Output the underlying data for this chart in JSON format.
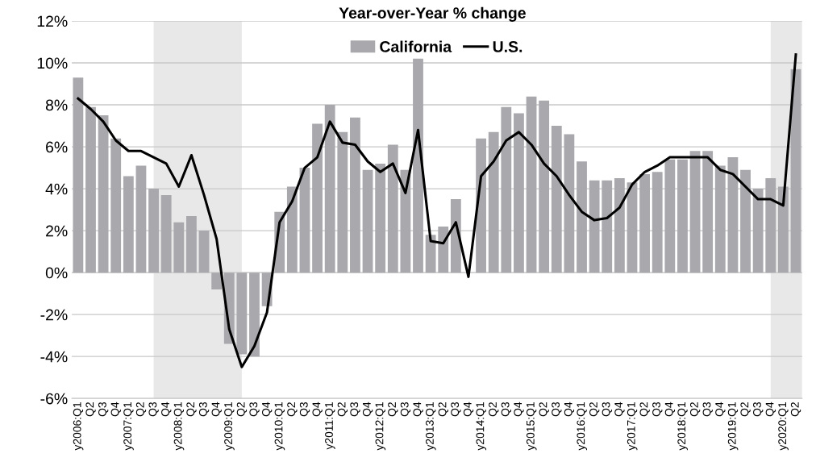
{
  "chart_data": {
    "type": "bar",
    "title": "Year-over-Year % change",
    "categories": [
      "y2006:Q1",
      "Q2",
      "Q3",
      "Q4",
      "y2007:Q1",
      "Q2",
      "Q3",
      "Q4",
      "y2008:Q1",
      "Q2",
      "Q3",
      "Q4",
      "y2009:Q1",
      "Q2",
      "Q3",
      "Q4",
      "y2010:Q1",
      "Q2",
      "Q3",
      "Q4",
      "y2011:Q1",
      "Q2",
      "Q3",
      "Q4",
      "y2012:Q1",
      "Q2",
      "Q3",
      "Q4",
      "y2013:Q1",
      "Q2",
      "Q3",
      "Q4",
      "y2014:Q1",
      "Q2",
      "Q3",
      "Q4",
      "y2015:Q1",
      "Q2",
      "Q3",
      "Q4",
      "y2016:Q1",
      "Q2",
      "Q3",
      "Q4",
      "y2017:Q1",
      "Q2",
      "Q3",
      "Q4",
      "y2018:Q1",
      "Q2",
      "Q3",
      "Q4",
      "y2019:Q1",
      "Q2",
      "Q3",
      "Q4",
      "y2020:Q1",
      "Q2"
    ],
    "series": [
      {
        "name": "California",
        "color": "#a8a8ad",
        "values": [
          9.3,
          7.9,
          7.5,
          6.4,
          4.6,
          5.1,
          4.0,
          3.7,
          2.4,
          2.7,
          2.0,
          -0.8,
          -3.4,
          -3.9,
          -4.0,
          -1.6,
          2.9,
          4.1,
          5.0,
          7.1,
          8.0,
          6.7,
          7.4,
          4.9,
          5.2,
          6.1,
          4.9,
          10.2,
          1.8,
          2.2,
          3.5,
          0.0,
          6.4,
          6.7,
          7.9,
          7.6,
          8.4,
          8.2,
          7.0,
          6.6,
          5.3,
          4.4,
          4.4,
          4.5,
          4.3,
          4.7,
          4.8,
          5.4,
          5.4,
          5.8,
          5.8,
          5.1,
          5.5,
          4.9,
          4.0,
          4.5,
          4.1,
          9.7
        ]
      },
      {
        "name": "U.S.",
        "type": "line",
        "color": "#000000",
        "values": [
          8.3,
          7.8,
          7.2,
          6.3,
          5.8,
          5.8,
          5.5,
          5.2,
          4.1,
          5.6,
          3.7,
          1.6,
          -2.7,
          -4.5,
          -3.5,
          -1.9,
          2.4,
          3.4,
          5.0,
          5.5,
          7.2,
          6.2,
          6.1,
          5.3,
          4.8,
          5.2,
          3.8,
          6.8,
          1.5,
          1.4,
          2.4,
          -0.2,
          4.6,
          5.3,
          6.3,
          6.7,
          6.1,
          5.2,
          4.6,
          3.7,
          2.9,
          2.5,
          2.6,
          3.1,
          4.2,
          4.8,
          5.1,
          5.5,
          5.5,
          5.5,
          5.5,
          4.9,
          4.7,
          4.1,
          3.5,
          3.5,
          3.2,
          10.4
        ]
      }
    ],
    "ylim": [
      -6,
      12
    ],
    "yticks": [
      {
        "value": -6,
        "label": "-6%"
      },
      {
        "value": -4,
        "label": "-4%"
      },
      {
        "value": -2,
        "label": "-2%"
      },
      {
        "value": 0,
        "label": "0%"
      },
      {
        "value": 2,
        "label": "2%"
      },
      {
        "value": 4,
        "label": "4%"
      },
      {
        "value": 6,
        "label": "6%"
      },
      {
        "value": 8,
        "label": "8%"
      },
      {
        "value": 10,
        "label": "10%"
      },
      {
        "value": 12,
        "label": "12%"
      }
    ],
    "grid": "y",
    "legend": "top"
  }
}
